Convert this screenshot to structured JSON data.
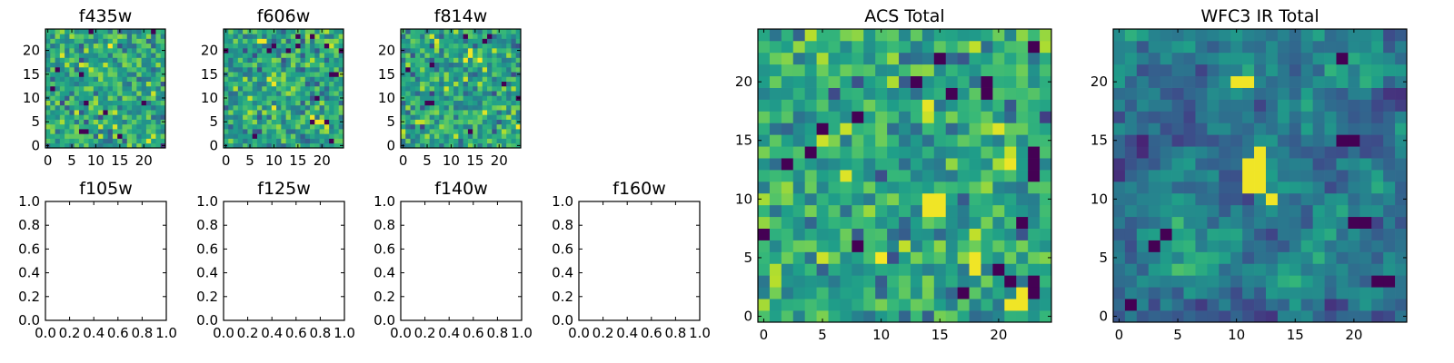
{
  "chart_data": [
    {
      "type": "heatmap",
      "title": "f435w",
      "xticks": [
        "0",
        "5",
        "10",
        "15",
        "20"
      ],
      "yticks": [
        "0",
        "5",
        "10",
        "15",
        "20"
      ],
      "xlim": [
        -0.5,
        24.5
      ],
      "ylim": [
        -0.5,
        24.5
      ],
      "grid_size": 25,
      "colormap": "viridis",
      "texture": "fine-noise",
      "seed": 11,
      "hotspots": [],
      "coldspots": []
    },
    {
      "type": "heatmap",
      "title": "f606w",
      "xticks": [
        "0",
        "5",
        "10",
        "15",
        "20"
      ],
      "yticks": [
        "0",
        "5",
        "10",
        "15",
        "20"
      ],
      "xlim": [
        -0.5,
        24.5
      ],
      "ylim": [
        -0.5,
        24.5
      ],
      "grid_size": 25,
      "colormap": "viridis",
      "texture": "fine-noise",
      "seed": 23,
      "hotspots": [
        [
          7,
          22
        ],
        [
          8,
          22
        ],
        [
          18,
          6
        ],
        [
          19,
          5
        ],
        [
          20,
          5
        ]
      ],
      "coldspots": []
    },
    {
      "type": "heatmap",
      "title": "f814w",
      "xticks": [
        "0",
        "5",
        "10",
        "15",
        "20"
      ],
      "yticks": [
        "0",
        "5",
        "10",
        "15",
        "20"
      ],
      "xlim": [
        -0.5,
        24.5
      ],
      "ylim": [
        -0.5,
        24.5
      ],
      "grid_size": 25,
      "colormap": "viridis",
      "texture": "fine-noise",
      "seed": 37,
      "hotspots": [
        [
          14,
          19
        ],
        [
          14,
          20
        ],
        [
          13,
          18
        ]
      ],
      "coldspots": []
    },
    {
      "type": "empty",
      "title": "f105w",
      "xticks": [
        "0.0",
        "0.2",
        "0.4",
        "0.6",
        "0.8",
        "1.0"
      ],
      "yticks": [
        "0.0",
        "0.2",
        "0.4",
        "0.6",
        "0.8",
        "1.0"
      ],
      "xlim": [
        0,
        1
      ],
      "ylim": [
        0,
        1
      ]
    },
    {
      "type": "empty",
      "title": "f125w",
      "xticks": [
        "0.0",
        "0.2",
        "0.4",
        "0.6",
        "0.8",
        "1.0"
      ],
      "yticks": [
        "0.0",
        "0.2",
        "0.4",
        "0.6",
        "0.8",
        "1.0"
      ],
      "xlim": [
        0,
        1
      ],
      "ylim": [
        0,
        1
      ]
    },
    {
      "type": "empty",
      "title": "f140w",
      "xticks": [
        "0.0",
        "0.2",
        "0.4",
        "0.6",
        "0.8",
        "1.0"
      ],
      "yticks": [
        "0.0",
        "0.2",
        "0.4",
        "0.6",
        "0.8",
        "1.0"
      ],
      "xlim": [
        0,
        1
      ],
      "ylim": [
        0,
        1
      ]
    },
    {
      "type": "empty",
      "title": "f160w",
      "xticks": [
        "0.0",
        "0.2",
        "0.4",
        "0.6",
        "0.8",
        "1.0"
      ],
      "yticks": [
        "0.0",
        "0.2",
        "0.4",
        "0.6",
        "0.8",
        "1.0"
      ],
      "xlim": [
        0,
        1
      ],
      "ylim": [
        0,
        1
      ]
    },
    {
      "type": "heatmap",
      "title": "ACS Total",
      "xticks": [
        "0",
        "5",
        "10",
        "15",
        "20"
      ],
      "yticks": [
        "0",
        "5",
        "10",
        "15",
        "20"
      ],
      "xlim": [
        -0.5,
        24.5
      ],
      "ylim": [
        -0.5,
        24.5
      ],
      "grid_size": 25,
      "colormap": "viridis",
      "texture": "fine-noise",
      "seed": 51,
      "hotspots": [
        [
          14,
          9
        ],
        [
          15,
          9
        ],
        [
          14,
          10
        ],
        [
          15,
          10
        ],
        [
          21,
          1
        ],
        [
          22,
          1
        ],
        [
          22,
          2
        ],
        [
          18,
          4
        ],
        [
          18,
          5
        ]
      ],
      "coldspots": [
        [
          8,
          17
        ],
        [
          19,
          19
        ],
        [
          19,
          20
        ],
        [
          23,
          14
        ],
        [
          21,
          3
        ],
        [
          23,
          3
        ],
        [
          20,
          4
        ],
        [
          0,
          7
        ]
      ]
    },
    {
      "type": "heatmap",
      "title": "WFC3 IR Total",
      "xticks": [
        "0",
        "5",
        "10",
        "15",
        "20"
      ],
      "yticks": [
        "0",
        "5",
        "10",
        "15",
        "20"
      ],
      "xlim": [
        -0.5,
        24.5
      ],
      "ylim": [
        -0.5,
        24.5
      ],
      "grid_size": 25,
      "colormap": "viridis",
      "texture": "smooth",
      "seed": 67,
      "hotspots": [
        [
          11,
          11
        ],
        [
          12,
          11
        ],
        [
          11,
          12
        ],
        [
          12,
          12
        ],
        [
          11,
          13
        ],
        [
          12,
          13
        ],
        [
          12,
          14
        ],
        [
          13,
          10
        ],
        [
          10,
          20
        ],
        [
          11,
          20
        ]
      ],
      "coldspots": [
        [
          19,
          15
        ],
        [
          20,
          15
        ],
        [
          20,
          8
        ],
        [
          21,
          8
        ],
        [
          4,
          7
        ],
        [
          3,
          6
        ],
        [
          22,
          3
        ],
        [
          23,
          3
        ],
        [
          1,
          1
        ],
        [
          19,
          22
        ]
      ]
    }
  ]
}
